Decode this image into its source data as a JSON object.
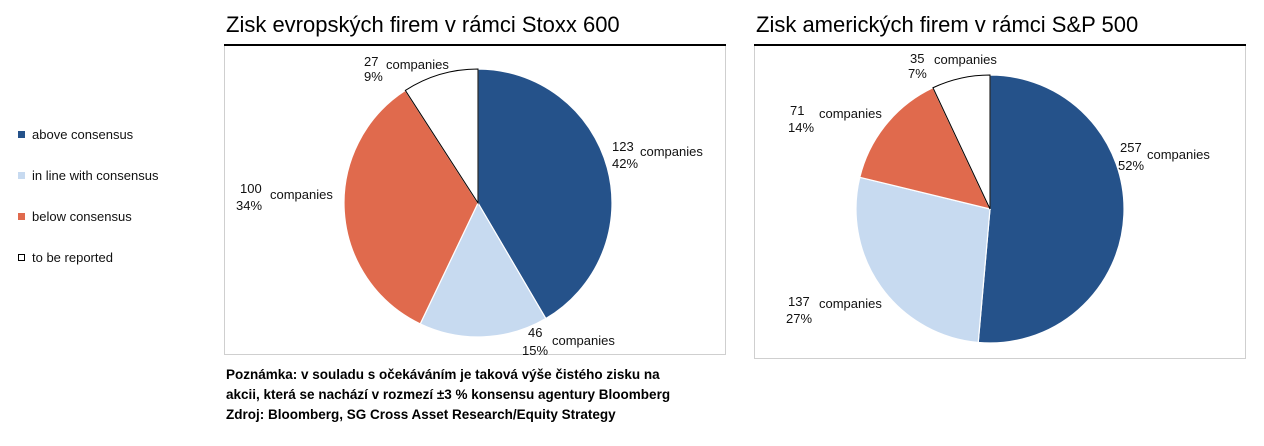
{
  "legend": {
    "items": [
      {
        "label": "above consensus",
        "color": "#25528a"
      },
      {
        "label": "in line with consensus",
        "color": "#c7daf0"
      },
      {
        "label": "below consensus",
        "color": "#e06a4d"
      },
      {
        "label": "to be reported",
        "color": "#ffffff"
      }
    ]
  },
  "note": {
    "line1": "Poznámka: v souladu s očekáváním je taková výše čistého zisku na",
    "line2": "akcii, která se nachází v rozmezí ±3 % konsensu agentury Bloomberg",
    "line3": "Zdroj: Bloomberg, SG Cross Asset Research/Equity Strategy"
  },
  "chart_data": [
    {
      "type": "pie",
      "title": "Zisk evropských firem v rámci Stoxx 600",
      "slices": [
        {
          "category": "above consensus",
          "count": 123,
          "count_label": "123",
          "unit": "companies",
          "percent": 42,
          "percent_label": "42%",
          "color": "#25528a"
        },
        {
          "category": "in line with consensus",
          "count": 46,
          "count_label": "46",
          "unit": "companies",
          "percent": 15,
          "percent_label": "15%",
          "color": "#c7daf0"
        },
        {
          "category": "below consensus",
          "count": 100,
          "count_label": "100",
          "unit": "companies",
          "percent": 34,
          "percent_label": "34%",
          "color": "#e06a4d"
        },
        {
          "category": "to be reported",
          "count": 27,
          "count_label": "27",
          "unit": "companies",
          "percent": 9,
          "percent_label": "9%",
          "color": "#ffffff"
        }
      ]
    },
    {
      "type": "pie",
      "title": "Zisk amerických firem v rámci S&P 500",
      "slices": [
        {
          "category": "above consensus",
          "count": 257,
          "count_label": "257",
          "unit": "companies",
          "percent": 52,
          "percent_label": "52%",
          "color": "#25528a"
        },
        {
          "category": "in line with consensus",
          "count": 137,
          "count_label": "137",
          "unit": "companies",
          "percent": 27,
          "percent_label": "27%",
          "color": "#c7daf0"
        },
        {
          "category": "below consensus",
          "count": 71,
          "count_label": "71",
          "unit": "companies",
          "percent": 14,
          "percent_label": "14%",
          "color": "#e06a4d"
        },
        {
          "category": "to be reported",
          "count": 35,
          "count_label": "35",
          "unit": "companies",
          "percent": 7,
          "percent_label": "7%",
          "color": "#ffffff"
        }
      ]
    }
  ]
}
